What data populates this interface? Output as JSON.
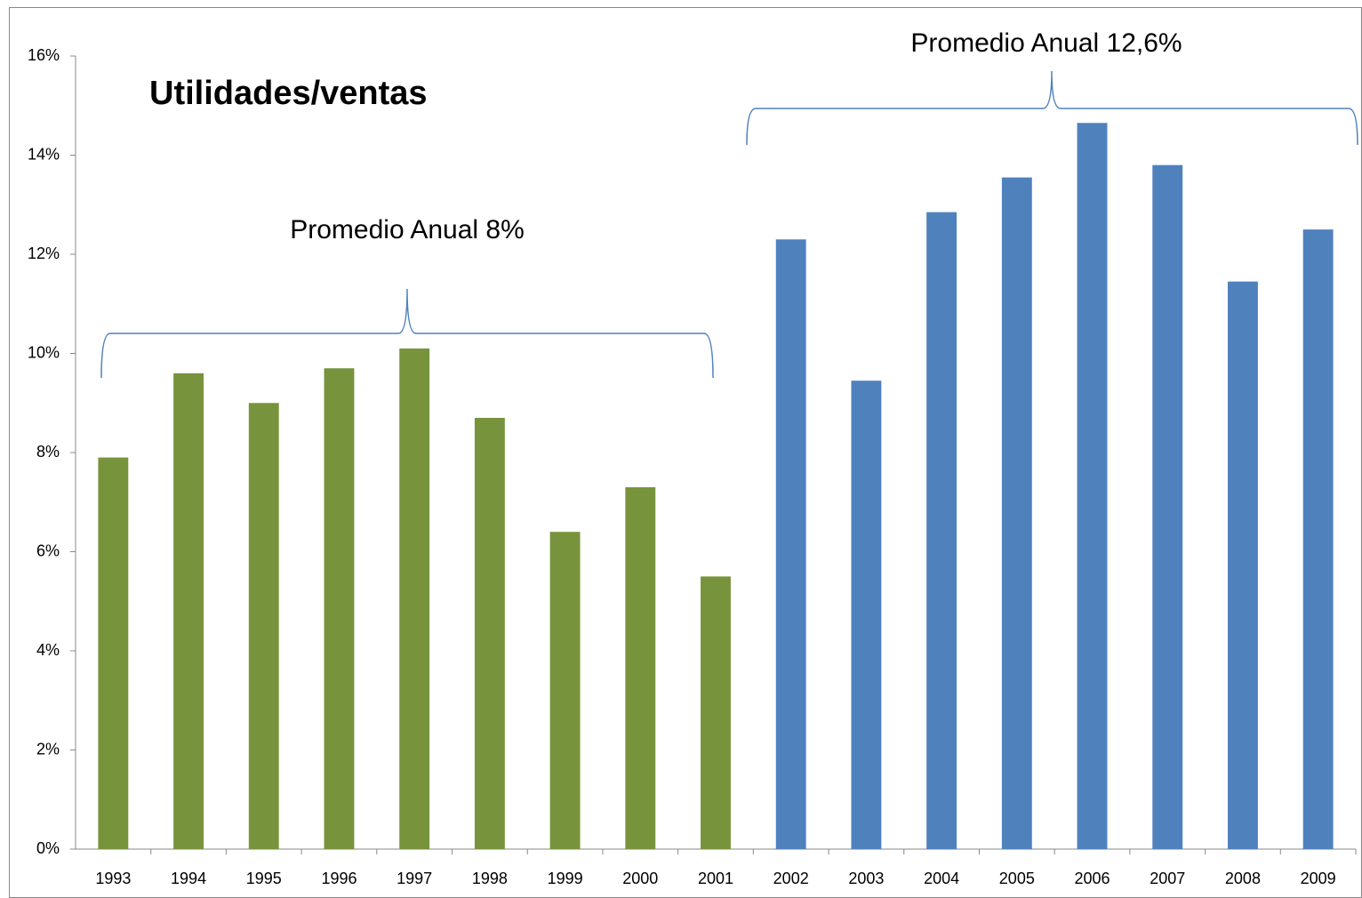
{
  "chart_data": {
    "type": "bar",
    "title": "Utilidades/ventas",
    "annotations": [
      "Promedio  Anual 8%",
      "Promedio  Anual 12,6%"
    ],
    "categories": [
      "1993",
      "1994",
      "1995",
      "1996",
      "1997",
      "1998",
      "1999",
      "2000",
      "2001",
      "2002",
      "2003",
      "2004",
      "2005",
      "2006",
      "2007",
      "2008",
      "2009"
    ],
    "values": [
      7.9,
      9.6,
      9.0,
      9.7,
      10.1,
      8.7,
      6.4,
      7.3,
      5.5,
      12.3,
      9.45,
      12.85,
      13.55,
      14.65,
      13.8,
      11.45,
      12.5
    ],
    "colors": [
      "#77933c",
      "#77933c",
      "#77933c",
      "#77933c",
      "#77933c",
      "#77933c",
      "#77933c",
      "#77933c",
      "#77933c",
      "#4f81bd",
      "#4f81bd",
      "#4f81bd",
      "#4f81bd",
      "#4f81bd",
      "#4f81bd",
      "#4f81bd",
      "#4f81bd"
    ],
    "ylim": [
      0,
      16
    ],
    "yticks": [
      {
        "value": 0,
        "label": "0%"
      },
      {
        "value": 2,
        "label": "2%"
      },
      {
        "value": 4,
        "label": "4%"
      },
      {
        "value": 6,
        "label": "6%"
      },
      {
        "value": 8,
        "label": "8%"
      },
      {
        "value": 10,
        "label": "10%"
      },
      {
        "value": 12,
        "label": "12%"
      },
      {
        "value": 14,
        "label": "14%"
      },
      {
        "value": 16,
        "label": "16%"
      }
    ],
    "grid": false
  }
}
